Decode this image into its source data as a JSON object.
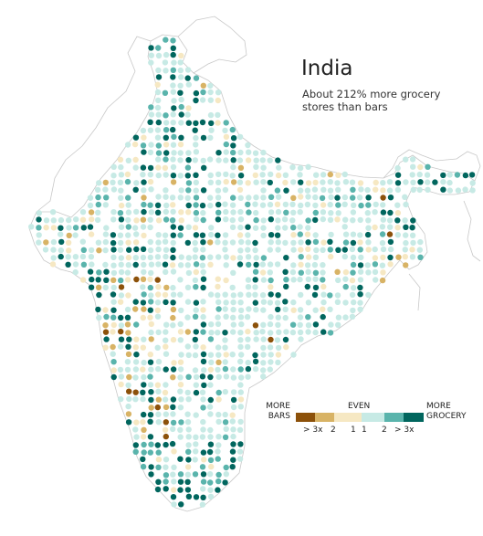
{
  "title": "India",
  "subtitle": "About 212% more grocery stores than bars",
  "legend": {
    "left_label_line1": "MORE",
    "left_label_line2": "BARS",
    "center_label": "EVEN",
    "right_label_line1": "MORE",
    "right_label_line2": "GROCERY",
    "bins": [
      {
        "label": "> 3x",
        "color": "#8c510a"
      },
      {
        "label": "2",
        "color": "#d8b365"
      },
      {
        "label": "1",
        "color": "#f6e8c3"
      },
      {
        "label": "1",
        "color": "#c7eae5"
      },
      {
        "label": "2",
        "color": "#5ab4ac"
      },
      {
        "label": "> 3x",
        "color": "#01665e"
      }
    ]
  },
  "colors": {
    "outline": "#c8c8c8",
    "background": "#ffffff"
  }
}
